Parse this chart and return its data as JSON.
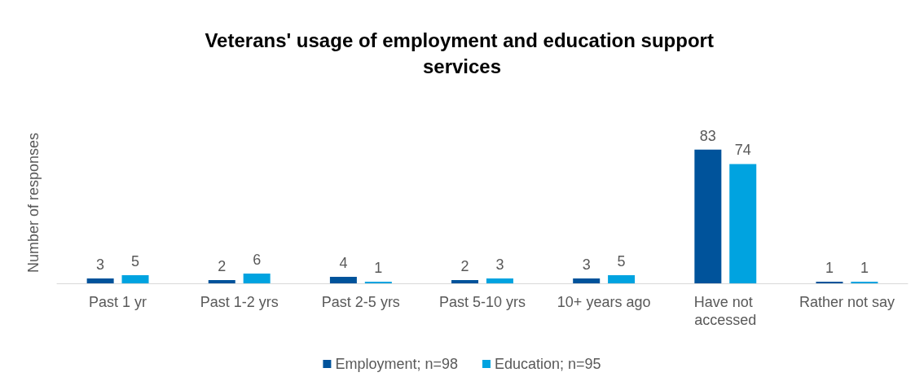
{
  "chart_data": {
    "type": "bar",
    "title": "Veterans' usage of employment and education support services",
    "ylabel": "Number of responses",
    "categories": [
      "Past 1 yr",
      "Past 1-2 yrs",
      "Past 2-5 yrs",
      "Past 5-10 yrs",
      "10+ years ago",
      "Have not accessed",
      "Rather not say"
    ],
    "series": [
      {
        "name": "Employment; n=98",
        "color": "#00539b",
        "values": [
          3,
          2,
          4,
          2,
          3,
          83,
          1
        ]
      },
      {
        "name": "Education; n=95",
        "color": "#00a3e0",
        "values": [
          5,
          6,
          1,
          3,
          5,
          74,
          1
        ]
      }
    ],
    "data_labels": true,
    "grid": false,
    "legend": "bottom"
  }
}
